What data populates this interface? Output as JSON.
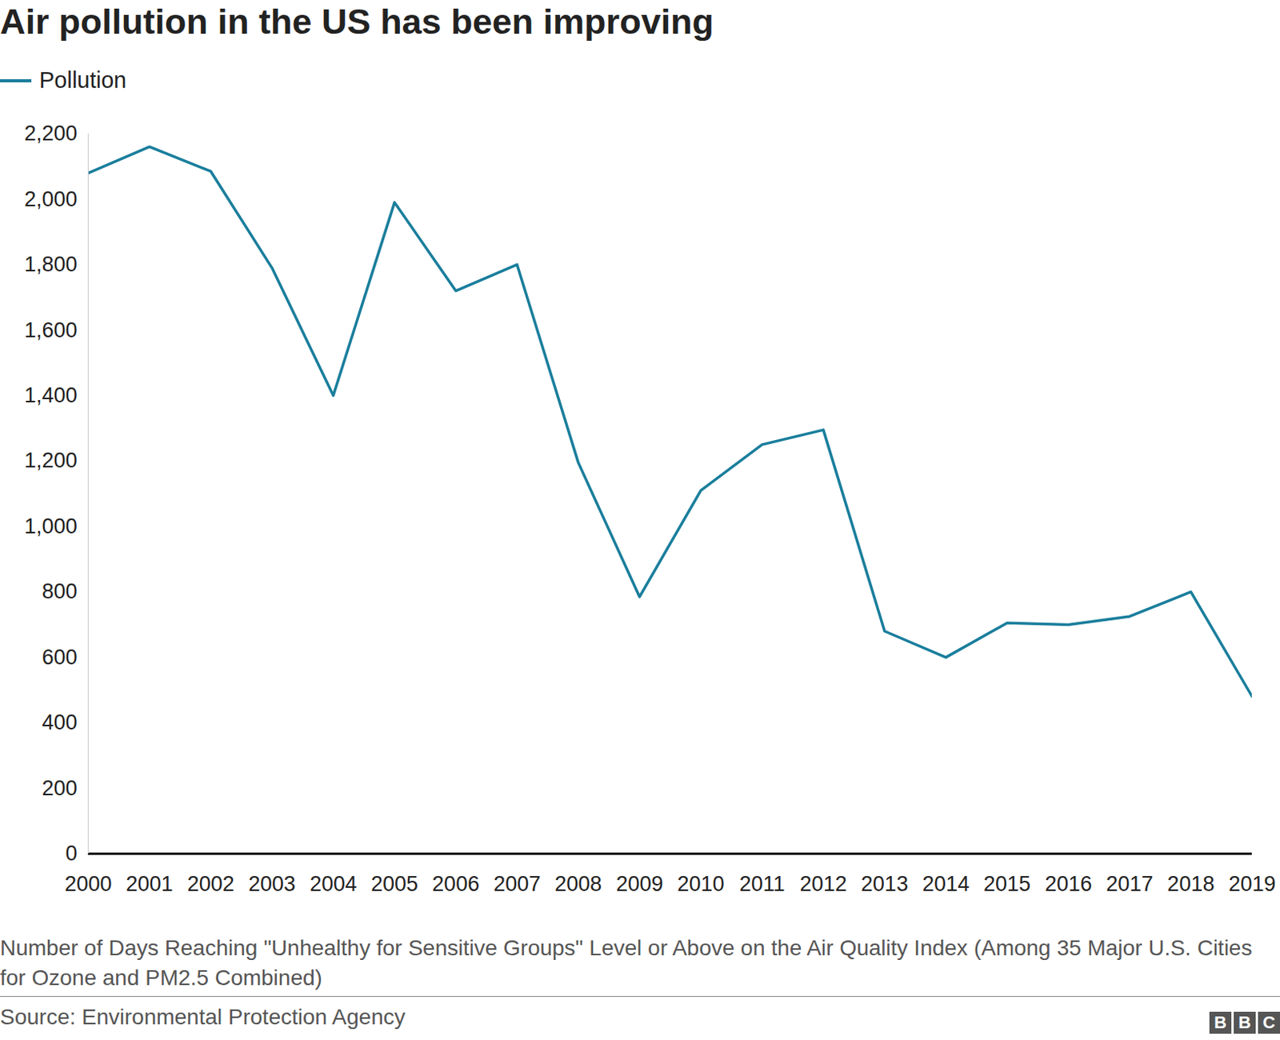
{
  "chart_data": {
    "type": "line",
    "title": "Air pollution in the US has been improving",
    "caption": "Number of Days Reaching \"Unhealthy for Sensitive Groups\" Level or Above on the Air Quality Index (Among 35 Major U.S. Cities for Ozone and PM2.5 Combined)",
    "source": "Source: Environmental Protection Agency",
    "logo": "BBC",
    "x": [
      2000,
      2001,
      2002,
      2003,
      2004,
      2005,
      2006,
      2007,
      2008,
      2009,
      2010,
      2011,
      2012,
      2013,
      2014,
      2015,
      2016,
      2017,
      2018,
      2019
    ],
    "series": [
      {
        "name": "Pollution",
        "color": "#1a7e9c",
        "values": [
          2080,
          2160,
          2085,
          1790,
          1400,
          1990,
          1720,
          1800,
          1195,
          785,
          1110,
          1250,
          1295,
          680,
          600,
          705,
          700,
          725,
          800,
          480
        ]
      }
    ],
    "xlim": [
      2000,
      2019
    ],
    "xticks": [
      2000,
      2001,
      2002,
      2003,
      2004,
      2005,
      2006,
      2007,
      2008,
      2009,
      2010,
      2011,
      2012,
      2013,
      2014,
      2015,
      2016,
      2017,
      2018,
      2019
    ],
    "ylim": [
      0,
      2200
    ],
    "yticks": [
      0,
      200,
      400,
      600,
      800,
      {
        "value": 1000,
        "label": "1,000"
      },
      {
        "value": 1200,
        "label": "1,200"
      },
      {
        "value": 1400,
        "label": "1,400"
      },
      {
        "value": 1600,
        "label": "1,600"
      },
      {
        "value": 1800,
        "label": "1,800"
      },
      {
        "value": 2000,
        "label": "2,000"
      },
      {
        "value": 2200,
        "label": "2,200"
      }
    ],
    "grid": false,
    "legend": "top-left"
  }
}
